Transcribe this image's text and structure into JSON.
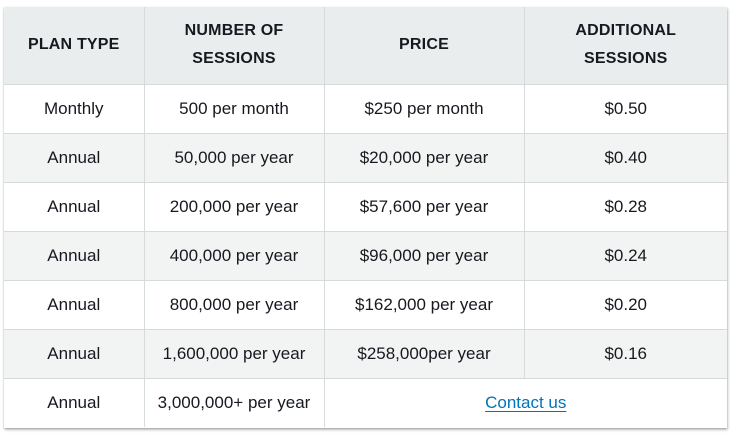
{
  "table": {
    "headers": [
      [
        "PLAN TYPE"
      ],
      [
        "NUMBER OF",
        "SESSIONS"
      ],
      [
        "PRICE"
      ],
      [
        "ADDITIONAL",
        "SESSIONS"
      ]
    ],
    "rows": [
      {
        "plan": "Monthly",
        "sessions": "500 per month",
        "price": "$250 per month",
        "additional": "$0.50"
      },
      {
        "plan": "Annual",
        "sessions": "50,000 per year",
        "price": "$20,000 per year",
        "additional": "$0.40"
      },
      {
        "plan": "Annual",
        "sessions": "200,000 per year",
        "price": "$57,600 per year",
        "additional": "$0.28"
      },
      {
        "plan": "Annual",
        "sessions": "400,000 per year",
        "price": "$96,000 per year",
        "additional": "$0.24"
      },
      {
        "plan": "Annual",
        "sessions": "800,000 per year",
        "price": "$162,000 per year",
        "additional": "$0.20"
      },
      {
        "plan": "Annual",
        "sessions": "1,600,000 per year",
        "price": "$258,000per year",
        "additional": "$0.16"
      },
      {
        "plan": "Annual",
        "sessions": "3,000,000+ per year",
        "contact_label": "Contact us"
      }
    ]
  },
  "colors": {
    "header_bg": "#eaeded",
    "stripe_bg": "#f2f3f3",
    "border": "#d5dbdb",
    "link": "#0073bb",
    "text": "#16191f"
  }
}
